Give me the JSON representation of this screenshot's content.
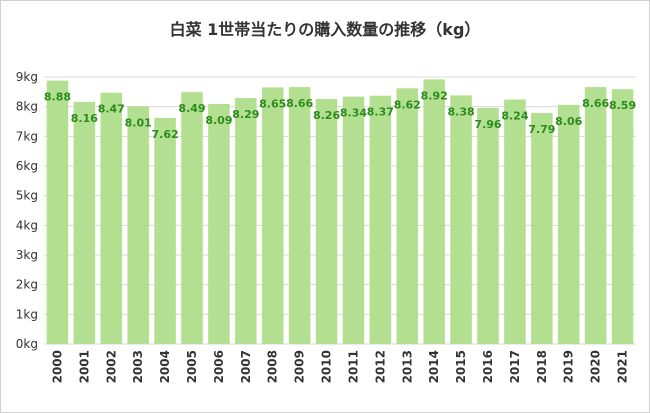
{
  "chart_data": {
    "type": "bar",
    "title": "白菜 1世帯当たりの購入数量の推移（kg）",
    "categories": [
      "2000",
      "2001",
      "2002",
      "2003",
      "2004",
      "2005",
      "2006",
      "2007",
      "2008",
      "2009",
      "2010",
      "2011",
      "2012",
      "2013",
      "2014",
      "2015",
      "2016",
      "2017",
      "2018",
      "2019",
      "2020",
      "2021"
    ],
    "values": [
      8.88,
      8.16,
      8.47,
      8.01,
      7.62,
      8.49,
      8.09,
      8.29,
      8.65,
      8.66,
      8.26,
      8.34,
      8.37,
      8.62,
      8.92,
      8.38,
      7.96,
      8.24,
      7.79,
      8.06,
      8.66,
      8.59
    ],
    "value_labels": [
      "8.88",
      "8.16",
      "8.47",
      "8.01",
      "7.62",
      "8.49",
      "8.09",
      "8.29",
      "8.65",
      "8.66",
      "8.26",
      "8.34",
      "8.37",
      "8.62",
      "8.92",
      "8.38",
      "7.96",
      "8.24",
      "7.79",
      "8.06",
      "8.66",
      "8.59"
    ],
    "y_ticks": [
      "0kg",
      "1kg",
      "2kg",
      "3kg",
      "4kg",
      "5kg",
      "6kg",
      "7kg",
      "8kg",
      "9kg"
    ],
    "ylim": [
      0,
      9
    ],
    "xlabel": "",
    "ylabel": "",
    "grid": true,
    "legend": "none",
    "colors": {
      "bar": "#b3e090",
      "label": "#2e8b1e",
      "grid": "#d9d9d9",
      "axis_text": "#333333"
    }
  }
}
